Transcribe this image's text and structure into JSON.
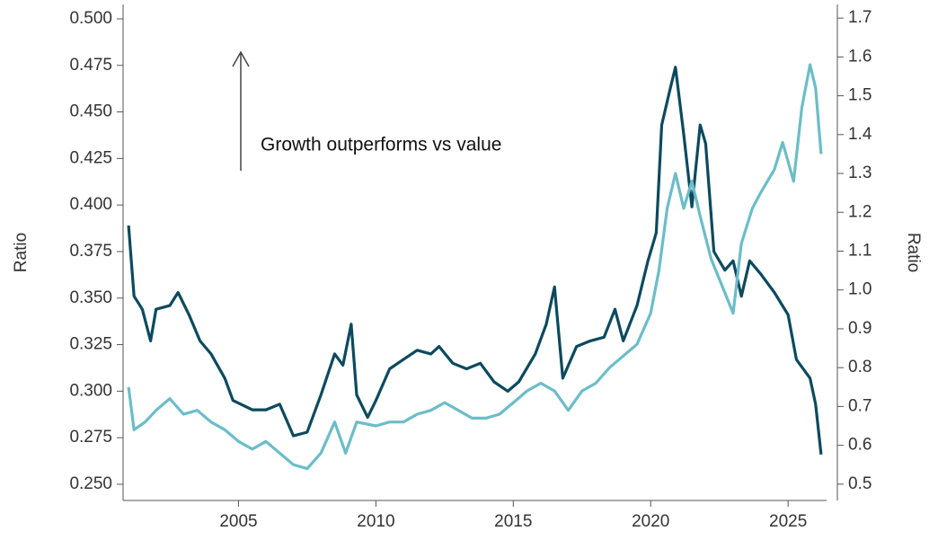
{
  "chart_data": {
    "type": "line",
    "annotations": [
      "Growth outperforms vs value"
    ],
    "ylabel": "Ratio",
    "y2label": "Ratio",
    "xlim": [
      2000.8,
      2026.4
    ],
    "xticks": [
      2005,
      2010,
      2015,
      2020,
      2025
    ],
    "ylim": [
      0.2413,
      0.5077
    ],
    "yticks": [
      {
        "value": 0.25,
        "label": "0.250"
      },
      0.275,
      {
        "value": 0.3,
        "label": "0.300"
      },
      0.325,
      {
        "value": 0.35,
        "label": "0.350"
      },
      0.375,
      {
        "value": 0.4,
        "label": "0.400"
      },
      0.425,
      {
        "value": 0.45,
        "label": "0.450"
      },
      0.475,
      {
        "value": 0.5,
        "label": "0.500"
      }
    ],
    "y2lim": [
      0.458,
      1.735
    ],
    "y2ticks": [
      0.5,
      0.6,
      0.7,
      0.8,
      0.9,
      {
        "value": 1.0,
        "label": "1.0"
      },
      1.1,
      1.2,
      1.3,
      1.4,
      1.5,
      1.6,
      1.7
    ],
    "series": [
      {
        "color": "#0b4a5e",
        "axis": "y",
        "x": [
          2001.0,
          2001.2,
          2001.5,
          2001.8,
          2002.0,
          2002.5,
          2002.8,
          2003.2,
          2003.6,
          2004.0,
          2004.5,
          2004.8,
          2005.5,
          2006.0,
          2006.5,
          2007.0,
          2007.5,
          2008.0,
          2008.5,
          2008.8,
          2009.1,
          2009.3,
          2009.7,
          2010.0,
          2010.5,
          2011.0,
          2011.5,
          2012.0,
          2012.3,
          2012.8,
          2013.3,
          2013.8,
          2014.3,
          2014.8,
          2015.2,
          2015.8,
          2016.2,
          2016.5,
          2016.8,
          2017.3,
          2017.8,
          2018.3,
          2018.7,
          2019.0,
          2019.5,
          2019.9,
          2020.2,
          2020.4,
          2020.7,
          2020.9,
          2021.2,
          2021.5,
          2021.8,
          2022.0,
          2022.3,
          2022.7,
          2023.0,
          2023.3,
          2023.6,
          2024.0,
          2024.5,
          2025.0,
          2025.3,
          2025.8,
          2026.0,
          2026.2
        ],
        "values": [
          0.389,
          0.351,
          0.344,
          0.327,
          0.344,
          0.346,
          0.353,
          0.341,
          0.327,
          0.32,
          0.307,
          0.295,
          0.29,
          0.29,
          0.293,
          0.276,
          0.278,
          0.298,
          0.32,
          0.314,
          0.336,
          0.298,
          0.286,
          0.295,
          0.312,
          0.317,
          0.322,
          0.32,
          0.324,
          0.315,
          0.312,
          0.315,
          0.305,
          0.3,
          0.305,
          0.32,
          0.336,
          0.356,
          0.307,
          0.324,
          0.327,
          0.329,
          0.344,
          0.327,
          0.346,
          0.37,
          0.385,
          0.443,
          0.462,
          0.474,
          0.438,
          0.399,
          0.443,
          0.433,
          0.375,
          0.365,
          0.37,
          0.351,
          0.37,
          0.363,
          0.353,
          0.341,
          0.317,
          0.307,
          0.293,
          0.266
        ]
      },
      {
        "color": "#6bbdc8",
        "axis": "y2",
        "x": [
          2001.0,
          2001.2,
          2001.6,
          2002.0,
          2002.5,
          2003.0,
          2003.5,
          2004.0,
          2004.5,
          2005.0,
          2005.5,
          2006.0,
          2006.5,
          2007.0,
          2007.5,
          2008.0,
          2008.5,
          2008.9,
          2009.3,
          2010.0,
          2010.5,
          2011.0,
          2011.5,
          2012.0,
          2012.5,
          2013.0,
          2013.5,
          2014.0,
          2014.5,
          2015.0,
          2015.5,
          2016.0,
          2016.5,
          2017.0,
          2017.5,
          2018.0,
          2018.5,
          2019.0,
          2019.5,
          2020.0,
          2020.3,
          2020.6,
          2020.9,
          2021.2,
          2021.5,
          2021.8,
          2022.2,
          2022.6,
          2023.0,
          2023.3,
          2023.7,
          2024.0,
          2024.5,
          2024.8,
          2025.2,
          2025.5,
          2025.8,
          2026.0,
          2026.2
        ],
        "values": [
          0.75,
          0.64,
          0.66,
          0.69,
          0.72,
          0.68,
          0.69,
          0.66,
          0.64,
          0.61,
          0.59,
          0.61,
          0.58,
          0.55,
          0.54,
          0.58,
          0.66,
          0.58,
          0.66,
          0.65,
          0.66,
          0.66,
          0.68,
          0.69,
          0.71,
          0.69,
          0.67,
          0.67,
          0.68,
          0.71,
          0.74,
          0.76,
          0.74,
          0.69,
          0.74,
          0.76,
          0.8,
          0.83,
          0.86,
          0.94,
          1.05,
          1.21,
          1.3,
          1.21,
          1.28,
          1.19,
          1.08,
          1.01,
          0.94,
          1.12,
          1.21,
          1.25,
          1.31,
          1.38,
          1.28,
          1.47,
          1.58,
          1.52,
          1.35
        ]
      }
    ]
  }
}
